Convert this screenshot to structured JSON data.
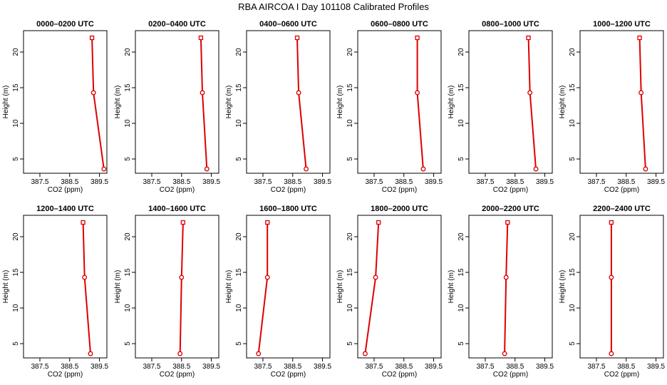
{
  "figure_title": "RBA AIRCOA I  Day 101108  Calibrated Profiles",
  "colors": {
    "series": "#dd0000",
    "axis": "#000000",
    "background": "#ffffff"
  },
  "chart_data": [
    {
      "type": "line",
      "title": "0000–0200 UTC",
      "xlabel": "CO2 (ppm)",
      "ylabel": "Height (m)",
      "xlim": [
        386.95,
        389.75
      ],
      "ylim": [
        3,
        23
      ],
      "xticks": [
        387.5,
        388.5,
        389.5
      ],
      "xticklabels": [
        "387.5",
        "388.5",
        "389.5"
      ],
      "yticks": [
        5,
        10,
        15,
        20
      ],
      "yticklabels": [
        "5",
        "10",
        "15",
        "20"
      ],
      "x": [
        389.25,
        389.3,
        389.65
      ],
      "y": [
        22,
        14.3,
        3.6
      ]
    },
    {
      "type": "line",
      "title": "0200–0400 UTC",
      "xlabel": "CO2 (ppm)",
      "ylabel": "Height (m)",
      "xlim": [
        386.95,
        389.75
      ],
      "ylim": [
        3,
        23
      ],
      "xticks": [
        387.5,
        388.5,
        389.5
      ],
      "xticklabels": [
        "387.5",
        "388.5",
        "389.5"
      ],
      "yticks": [
        5,
        10,
        15,
        20
      ],
      "yticklabels": [
        "5",
        "10",
        "15",
        "20"
      ],
      "x": [
        389.15,
        389.2,
        389.35
      ],
      "y": [
        22,
        14.3,
        3.6
      ]
    },
    {
      "type": "line",
      "title": "0400–0600 UTC",
      "xlabel": "CO2 (ppm)",
      "ylabel": "Height (m)",
      "xlim": [
        386.95,
        389.75
      ],
      "ylim": [
        3,
        23
      ],
      "xticks": [
        387.5,
        388.5,
        389.5
      ],
      "xticklabels": [
        "387.5",
        "388.5",
        "389.5"
      ],
      "yticks": [
        5,
        10,
        15,
        20
      ],
      "yticklabels": [
        "5",
        "10",
        "15",
        "20"
      ],
      "x": [
        388.65,
        388.7,
        388.95
      ],
      "y": [
        22,
        14.3,
        3.6
      ]
    },
    {
      "type": "line",
      "title": "0600–0800 UTC",
      "xlabel": "CO2 (ppm)",
      "ylabel": "Height (m)",
      "xlim": [
        386.95,
        389.75
      ],
      "ylim": [
        3,
        23
      ],
      "xticks": [
        387.5,
        388.5,
        389.5
      ],
      "xticklabels": [
        "387.5",
        "388.5",
        "389.5"
      ],
      "yticks": [
        5,
        10,
        15,
        20
      ],
      "yticklabels": [
        "5",
        "10",
        "15",
        "20"
      ],
      "x": [
        388.95,
        388.95,
        389.15
      ],
      "y": [
        22,
        14.3,
        3.6
      ]
    },
    {
      "type": "line",
      "title": "0800–1000 UTC",
      "xlabel": "CO2 (ppm)",
      "ylabel": "Height (m)",
      "xlim": [
        386.95,
        389.75
      ],
      "ylim": [
        3,
        23
      ],
      "xticks": [
        387.5,
        388.5,
        389.5
      ],
      "xticklabels": [
        "387.5",
        "388.5",
        "389.5"
      ],
      "yticks": [
        5,
        10,
        15,
        20
      ],
      "yticklabels": [
        "5",
        "10",
        "15",
        "20"
      ],
      "x": [
        388.95,
        389.0,
        389.2
      ],
      "y": [
        22,
        14.3,
        3.6
      ]
    },
    {
      "type": "line",
      "title": "1000–1200 UTC",
      "xlabel": "CO2 (ppm)",
      "ylabel": "Height (m)",
      "xlim": [
        386.95,
        389.75
      ],
      "ylim": [
        3,
        23
      ],
      "xticks": [
        387.5,
        388.5,
        389.5
      ],
      "xticklabels": [
        "387.5",
        "388.5",
        "389.5"
      ],
      "yticks": [
        5,
        10,
        15,
        20
      ],
      "yticklabels": [
        "5",
        "10",
        "15",
        "20"
      ],
      "x": [
        388.95,
        389.0,
        389.15
      ],
      "y": [
        22,
        14.3,
        3.6
      ]
    },
    {
      "type": "line",
      "title": "1200–1400 UTC",
      "xlabel": "CO2 (ppm)",
      "ylabel": "Height (m)",
      "xlim": [
        386.95,
        389.75
      ],
      "ylim": [
        3,
        23
      ],
      "xticks": [
        387.5,
        388.5,
        389.5
      ],
      "xticklabels": [
        "387.5",
        "388.5",
        "389.5"
      ],
      "yticks": [
        5,
        10,
        15,
        20
      ],
      "yticklabels": [
        "5",
        "10",
        "15",
        "20"
      ],
      "x": [
        388.95,
        389.0,
        389.2
      ],
      "y": [
        22,
        14.3,
        3.6
      ]
    },
    {
      "type": "line",
      "title": "1400–1600 UTC",
      "xlabel": "CO2 (ppm)",
      "ylabel": "Height (m)",
      "xlim": [
        386.95,
        389.75
      ],
      "ylim": [
        3,
        23
      ],
      "xticks": [
        387.5,
        388.5,
        389.5
      ],
      "xticklabels": [
        "387.5",
        "388.5",
        "389.5"
      ],
      "yticks": [
        5,
        10,
        15,
        20
      ],
      "yticklabels": [
        "5",
        "10",
        "15",
        "20"
      ],
      "x": [
        388.55,
        388.5,
        388.45
      ],
      "y": [
        22,
        14.3,
        3.6
      ]
    },
    {
      "type": "line",
      "title": "1600–1800 UTC",
      "xlabel": "CO2 (ppm)",
      "ylabel": "Height (m)",
      "xlim": [
        386.95,
        389.75
      ],
      "ylim": [
        3,
        23
      ],
      "xticks": [
        387.5,
        388.5,
        389.5
      ],
      "xticklabels": [
        "387.5",
        "388.5",
        "389.5"
      ],
      "yticks": [
        5,
        10,
        15,
        20
      ],
      "yticklabels": [
        "5",
        "10",
        "15",
        "20"
      ],
      "x": [
        387.65,
        387.65,
        387.35
      ],
      "y": [
        22,
        14.3,
        3.6
      ]
    },
    {
      "type": "line",
      "title": "1800–2000 UTC",
      "xlabel": "CO2 (ppm)",
      "ylabel": "Height (m)",
      "xlim": [
        386.95,
        389.75
      ],
      "ylim": [
        3,
        23
      ],
      "xticks": [
        387.5,
        388.5,
        389.5
      ],
      "xticklabels": [
        "387.5",
        "388.5",
        "389.5"
      ],
      "yticks": [
        5,
        10,
        15,
        20
      ],
      "yticklabels": [
        "5",
        "10",
        "15",
        "20"
      ],
      "x": [
        387.65,
        387.55,
        387.2
      ],
      "y": [
        22,
        14.3,
        3.6
      ]
    },
    {
      "type": "line",
      "title": "2000–2200 UTC",
      "xlabel": "CO2 (ppm)",
      "ylabel": "Height (m)",
      "xlim": [
        386.95,
        389.75
      ],
      "ylim": [
        3,
        23
      ],
      "xticks": [
        387.5,
        388.5,
        389.5
      ],
      "xticklabels": [
        "387.5",
        "388.5",
        "389.5"
      ],
      "yticks": [
        5,
        10,
        15,
        20
      ],
      "yticklabels": [
        "5",
        "10",
        "15",
        "20"
      ],
      "x": [
        388.25,
        388.2,
        388.15
      ],
      "y": [
        22,
        14.3,
        3.6
      ]
    },
    {
      "type": "line",
      "title": "2200–2400 UTC",
      "xlabel": "CO2 (ppm)",
      "ylabel": "Height (m)",
      "xlim": [
        386.95,
        389.75
      ],
      "ylim": [
        3,
        23
      ],
      "xticks": [
        387.5,
        388.5,
        389.5
      ],
      "xticklabels": [
        "387.5",
        "388.5",
        "389.5"
      ],
      "yticks": [
        5,
        10,
        15,
        20
      ],
      "yticklabels": [
        "5",
        "10",
        "15",
        "20"
      ],
      "x": [
        388.0,
        388.0,
        388.0
      ],
      "y": [
        22,
        14.3,
        3.6
      ]
    }
  ]
}
